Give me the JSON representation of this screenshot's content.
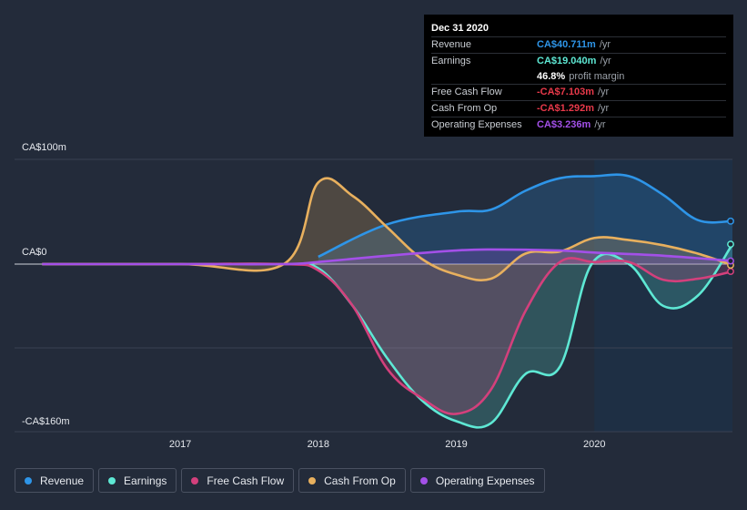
{
  "tooltip": {
    "date": "Dec 31 2020",
    "rows": [
      {
        "label": "Revenue",
        "value": "CA$40.711m",
        "unit": "/yr",
        "color": "#2e95e8"
      },
      {
        "label": "Earnings",
        "value": "CA$19.040m",
        "unit": "/yr",
        "color": "#5ee8d4"
      },
      {
        "label": "",
        "value": "46.8%",
        "unit": "profit margin",
        "color": "#ffffff"
      },
      {
        "label": "Free Cash Flow",
        "value": "-CA$7.103m",
        "unit": "/yr",
        "color": "#e8394a"
      },
      {
        "label": "Cash From Op",
        "value": "-CA$1.292m",
        "unit": "/yr",
        "color": "#e8394a"
      },
      {
        "label": "Operating Expenses",
        "value": "CA$3.236m",
        "unit": "/yr",
        "color": "#a350e8"
      }
    ]
  },
  "legend": [
    {
      "label": "Revenue",
      "color": "#2e95e8"
    },
    {
      "label": "Earnings",
      "color": "#5ee8d4"
    },
    {
      "label": "Free Cash Flow",
      "color": "#d3407c"
    },
    {
      "label": "Cash From Op",
      "color": "#e8b05e"
    },
    {
      "label": "Operating Expenses",
      "color": "#a350e8"
    }
  ],
  "chart_data": {
    "type": "area",
    "title": "",
    "y_tick_labels": [
      "CA$100m",
      "CA$0",
      "-CA$160m"
    ],
    "x_tick_labels": [
      "2017",
      "2018",
      "2019",
      "2020"
    ],
    "x_ticks": [
      2017.0,
      2018.0,
      2019.0,
      2020.0
    ],
    "xlim": [
      2015.8,
      2021.0
    ],
    "ylim": [
      -160,
      100
    ],
    "forecast_start": 2020.0,
    "series": [
      {
        "name": "Revenue",
        "color": "#2e95e8",
        "points": [
          [
            2018.0,
            7
          ],
          [
            2018.5,
            38
          ],
          [
            2019.0,
            50
          ],
          [
            2019.25,
            52
          ],
          [
            2019.5,
            70
          ],
          [
            2019.75,
            82
          ],
          [
            2020.0,
            84
          ],
          [
            2020.25,
            84
          ],
          [
            2020.5,
            66
          ],
          [
            2020.75,
            42
          ],
          [
            2021.0,
            41
          ]
        ]
      },
      {
        "name": "Earnings",
        "color": "#5ee8d4",
        "points": [
          [
            2016.0,
            0
          ],
          [
            2017.0,
            0
          ],
          [
            2017.75,
            0
          ],
          [
            2018.0,
            -4
          ],
          [
            2018.25,
            -40
          ],
          [
            2018.5,
            -90
          ],
          [
            2018.75,
            -130
          ],
          [
            2019.0,
            -150
          ],
          [
            2019.25,
            -152
          ],
          [
            2019.5,
            -105
          ],
          [
            2019.75,
            -98
          ],
          [
            2019.98,
            0
          ],
          [
            2020.25,
            0
          ],
          [
            2020.5,
            -40
          ],
          [
            2020.75,
            -30
          ],
          [
            2021.0,
            19
          ]
        ]
      },
      {
        "name": "Free Cash Flow",
        "color": "#d3407c",
        "points": [
          [
            2016.0,
            0
          ],
          [
            2017.0,
            0
          ],
          [
            2017.75,
            0
          ],
          [
            2018.0,
            -6
          ],
          [
            2018.25,
            -40
          ],
          [
            2018.5,
            -100
          ],
          [
            2018.75,
            -128
          ],
          [
            2019.0,
            -143
          ],
          [
            2019.25,
            -120
          ],
          [
            2019.5,
            -45
          ],
          [
            2019.75,
            2
          ],
          [
            2020.0,
            2
          ],
          [
            2020.25,
            2
          ],
          [
            2020.5,
            -15
          ],
          [
            2020.75,
            -14
          ],
          [
            2021.0,
            -7
          ]
        ]
      },
      {
        "name": "Cash From Op",
        "color": "#e8b05e",
        "points": [
          [
            2016.0,
            0
          ],
          [
            2017.0,
            0
          ],
          [
            2017.75,
            0
          ],
          [
            2018.0,
            78
          ],
          [
            2018.25,
            65
          ],
          [
            2018.5,
            35
          ],
          [
            2018.75,
            5
          ],
          [
            2019.0,
            -10
          ],
          [
            2019.25,
            -14
          ],
          [
            2019.5,
            10
          ],
          [
            2019.75,
            12
          ],
          [
            2020.0,
            25
          ],
          [
            2020.25,
            23
          ],
          [
            2020.5,
            18
          ],
          [
            2020.75,
            10
          ],
          [
            2021.0,
            -1
          ]
        ]
      },
      {
        "name": "Operating Expenses",
        "color": "#a350e8",
        "points": [
          [
            2016.0,
            0
          ],
          [
            2017.0,
            0
          ],
          [
            2017.75,
            0
          ],
          [
            2018.0,
            2
          ],
          [
            2018.5,
            8
          ],
          [
            2019.0,
            13
          ],
          [
            2019.25,
            14
          ],
          [
            2019.75,
            13
          ],
          [
            2020.0,
            11
          ],
          [
            2020.5,
            8
          ],
          [
            2021.0,
            3
          ]
        ]
      }
    ]
  }
}
